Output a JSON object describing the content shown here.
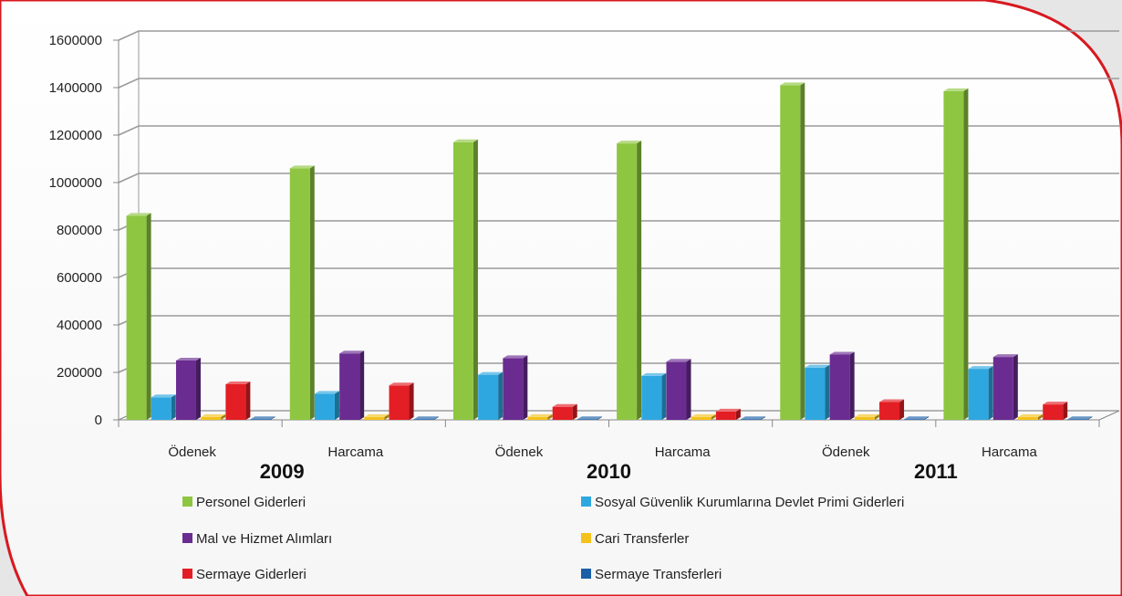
{
  "chart_data": {
    "type": "bar",
    "categories": [
      "Ödenek",
      "Harcama",
      "Ödenek",
      "Harcama",
      "Ödenek",
      "Harcama"
    ],
    "groups": [
      "2009",
      "2010",
      "2011"
    ],
    "ylim": [
      0,
      1600000
    ],
    "yticks": [
      "0",
      "200000",
      "400000",
      "600000",
      "800000",
      "1000000",
      "1200000",
      "1400000",
      "1600000"
    ],
    "grid": true,
    "legend_position": "bottom",
    "series": [
      {
        "name": "Personel Giderleri",
        "color": "#8ec641",
        "values": [
          860000,
          1060000,
          1170000,
          1165000,
          1410000,
          1385000
        ]
      },
      {
        "name": "Sosyal Güvenlik Kurumlarına Devlet Primi Giderleri",
        "color": "#2ea7e0",
        "values": [
          95000,
          110000,
          190000,
          185000,
          220000,
          215000
        ]
      },
      {
        "name": "Mal ve Hizmet Alımları",
        "color": "#6a2c91",
        "values": [
          250000,
          280000,
          260000,
          245000,
          275000,
          265000
        ]
      },
      {
        "name": "Cari Transferler",
        "color": "#f4c21b",
        "values": [
          12000,
          12000,
          12000,
          12000,
          12000,
          12000
        ]
      },
      {
        "name": "Sermaye Giderleri",
        "color": "#e31e24",
        "values": [
          150000,
          145000,
          55000,
          35000,
          75000,
          65000
        ]
      },
      {
        "name": "Sermaye Transferleri",
        "color": "#1b5fa8",
        "values": [
          3000,
          3000,
          3000,
          3000,
          3000,
          3000
        ]
      }
    ]
  }
}
